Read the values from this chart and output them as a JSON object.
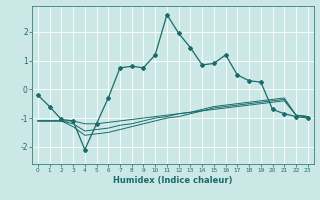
{
  "xlabel": "Humidex (Indice chaleur)",
  "xlim": [
    -0.5,
    23.5
  ],
  "ylim": [
    -2.6,
    2.9
  ],
  "yticks": [
    -2,
    -1,
    0,
    1,
    2
  ],
  "xticks": [
    0,
    1,
    2,
    3,
    4,
    5,
    6,
    7,
    8,
    9,
    10,
    11,
    12,
    13,
    14,
    15,
    16,
    17,
    18,
    19,
    20,
    21,
    22,
    23
  ],
  "bg_color": "#cce8e6",
  "line_color": "#1a6b6b",
  "grid_color": "#ffffff",
  "line1_x": [
    0,
    1,
    2,
    3,
    4,
    5,
    6,
    7,
    8,
    9,
    10,
    11,
    12,
    13,
    14,
    15,
    16,
    17,
    18,
    19,
    20,
    21,
    22,
    23
  ],
  "line1_y": [
    -0.2,
    -0.6,
    -1.05,
    -1.1,
    -2.1,
    -1.2,
    -0.3,
    0.75,
    0.8,
    0.75,
    1.2,
    2.6,
    1.95,
    1.45,
    0.85,
    0.9,
    1.2,
    0.5,
    0.3,
    0.25,
    -0.7,
    -0.85,
    -0.95,
    -1.0
  ],
  "line2_x": [
    0,
    1,
    2,
    3,
    4,
    5,
    6,
    7,
    8,
    9,
    10,
    11,
    12,
    13,
    14,
    15,
    16,
    17,
    18,
    19,
    20,
    21,
    22,
    23
  ],
  "line2_y": [
    -1.1,
    -1.1,
    -1.1,
    -1.1,
    -1.2,
    -1.2,
    -1.15,
    -1.1,
    -1.05,
    -1.0,
    -0.95,
    -0.9,
    -0.85,
    -0.8,
    -0.75,
    -0.7,
    -0.65,
    -0.6,
    -0.55,
    -0.5,
    -0.45,
    -0.4,
    -0.9,
    -0.95
  ],
  "line3_x": [
    0,
    1,
    2,
    3,
    4,
    5,
    6,
    7,
    8,
    9,
    10,
    11,
    12,
    13,
    14,
    15,
    16,
    17,
    18,
    19,
    20,
    21,
    22,
    23
  ],
  "line3_y": [
    -1.1,
    -1.1,
    -1.1,
    -1.2,
    -1.45,
    -1.4,
    -1.35,
    -1.25,
    -1.2,
    -1.1,
    -1.0,
    -0.95,
    -0.85,
    -0.8,
    -0.7,
    -0.6,
    -0.55,
    -0.5,
    -0.45,
    -0.4,
    -0.35,
    -0.3,
    -0.9,
    -0.95
  ],
  "line4_x": [
    0,
    1,
    2,
    3,
    4,
    5,
    6,
    7,
    8,
    9,
    10,
    11,
    12,
    13,
    14,
    15,
    16,
    17,
    18,
    19,
    20,
    21,
    22,
    23
  ],
  "line4_y": [
    -1.1,
    -1.1,
    -1.1,
    -1.3,
    -1.6,
    -1.55,
    -1.5,
    -1.4,
    -1.3,
    -1.2,
    -1.1,
    -1.0,
    -0.95,
    -0.85,
    -0.75,
    -0.65,
    -0.6,
    -0.55,
    -0.5,
    -0.45,
    -0.4,
    -0.35,
    -0.9,
    -0.95
  ]
}
